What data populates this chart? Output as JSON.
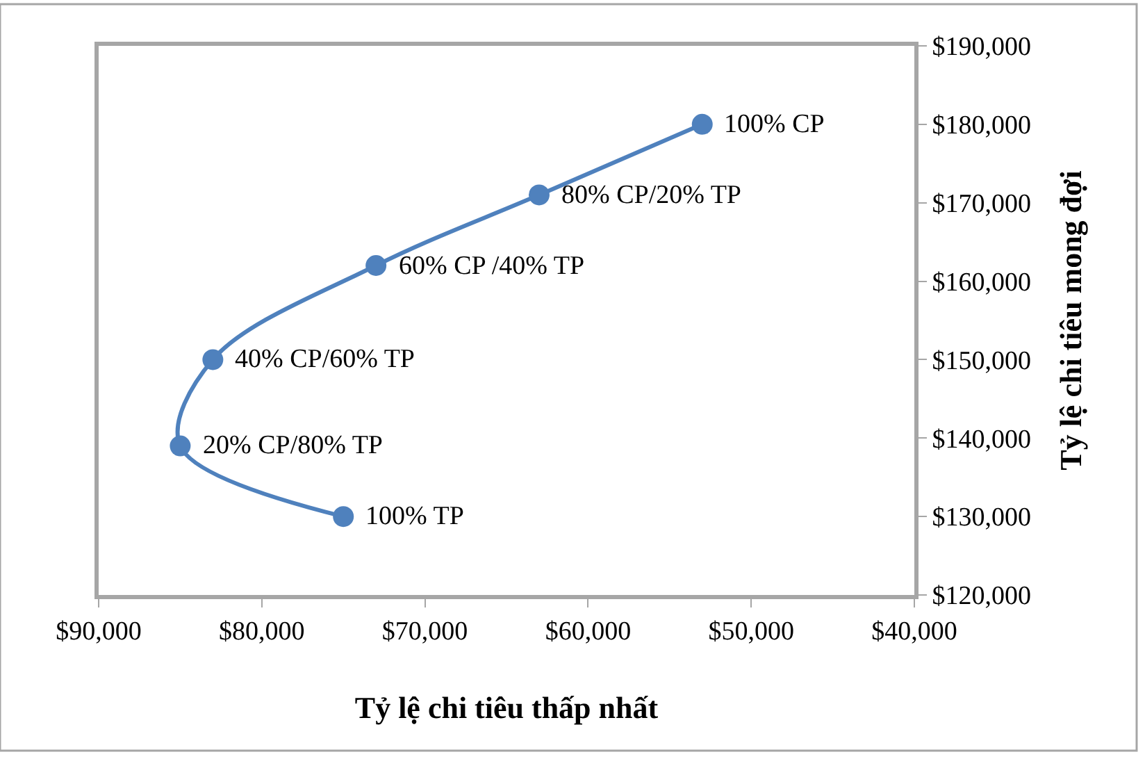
{
  "chart_data": {
    "type": "line",
    "xlabel": "Tỷ lệ chi tiêu thấp nhất",
    "ylabel": "Tỷ lệ chi tiêu mong đợi",
    "x": [
      53000,
      63000,
      73000,
      83000,
      85000,
      75000
    ],
    "series": [
      {
        "color": "#4f81bd",
        "values": [
          180000,
          171000,
          162000,
          150000,
          139000,
          130000
        ]
      }
    ],
    "marker": "circle",
    "line_style": "solid",
    "xlim": [
      90000,
      40000
    ],
    "xticks": [
      {
        "value": 90000,
        "label": "$90,000"
      },
      {
        "value": 80000,
        "label": "$80,000"
      },
      {
        "value": 70000,
        "label": "$70,000"
      },
      {
        "value": 60000,
        "label": "$60,000"
      },
      {
        "value": 50000,
        "label": "$50,000"
      },
      {
        "value": 40000,
        "label": "$40,000"
      }
    ],
    "ylim": [
      120000,
      190000
    ],
    "yticks": [
      {
        "value": 120000,
        "label": "$120,000"
      },
      {
        "value": 130000,
        "label": "$130,000"
      },
      {
        "value": 140000,
        "label": "$140,000"
      },
      {
        "value": 150000,
        "label": "$150,000"
      },
      {
        "value": 160000,
        "label": "$160,000"
      },
      {
        "value": 170000,
        "label": "$170,000"
      },
      {
        "value": 180000,
        "label": "$180,000"
      },
      {
        "value": 190000,
        "label": "$190,000"
      }
    ],
    "annotations": [
      {
        "text": "100% CP",
        "x": 53000,
        "y": 180000
      },
      {
        "text": "80% CP/20% TP",
        "x": 63000,
        "y": 171000
      },
      {
        "text": "60% CP /40% TP",
        "x": 73000,
        "y": 162000
      },
      {
        "text": "40% CP/60% TP",
        "x": 83000,
        "y": 150000
      },
      {
        "text": "20% CP/80% TP",
        "x": 85000,
        "y": 139000
      },
      {
        "text": "100% TP",
        "x": 75000,
        "y": 130000
      }
    ]
  }
}
